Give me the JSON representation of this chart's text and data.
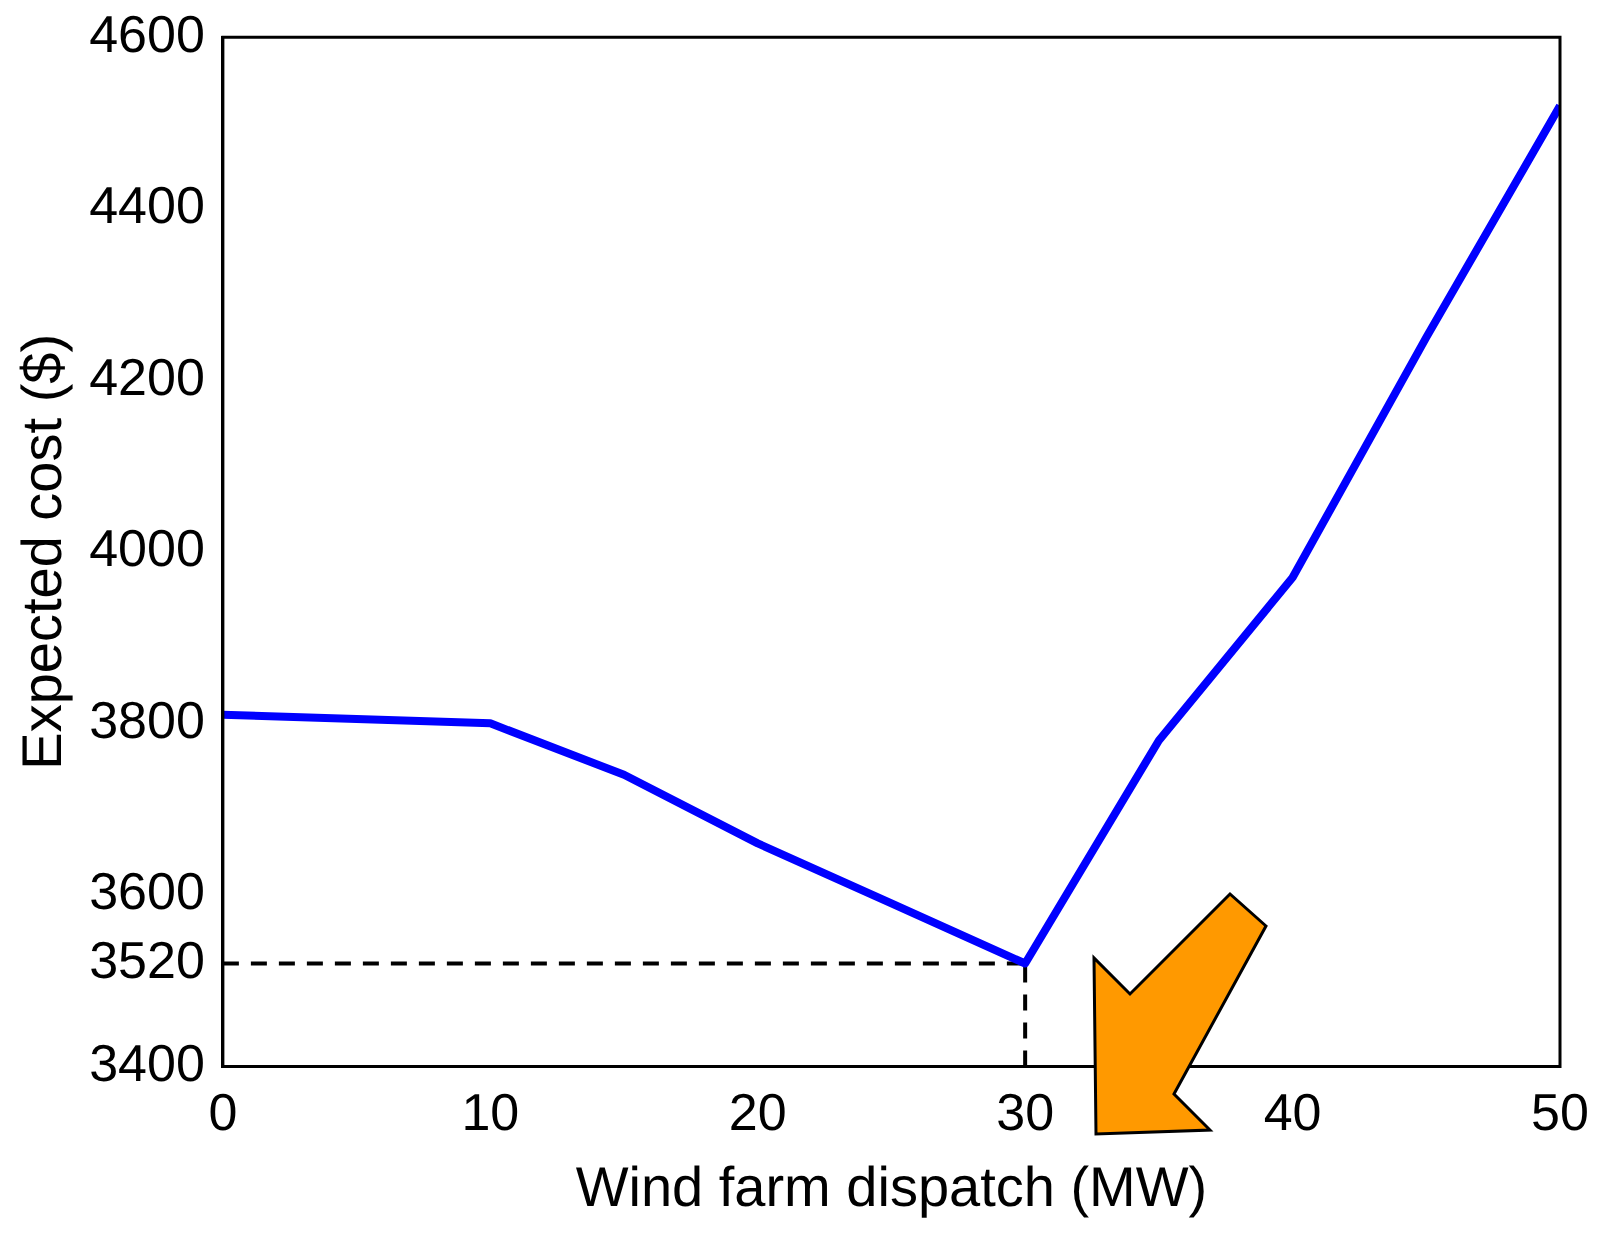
{
  "chart_data": {
    "type": "line",
    "xlabel": "Wind farm dispatch (MW)",
    "ylabel": "Expected cost ($)",
    "xlim": [
      0,
      50
    ],
    "xticks": [
      0,
      10,
      20,
      30,
      40,
      50
    ],
    "ylim": [
      3400,
      4600
    ],
    "yticks": [
      3400,
      3520,
      3600,
      3800,
      4000,
      4200,
      4400,
      4600
    ],
    "grid": false,
    "legend": false,
    "marker": "none",
    "series": [
      {
        "color": "#0000ff",
        "x": [
          0,
          5,
          10,
          15,
          20,
          25,
          30,
          35,
          40,
          45,
          50
        ],
        "values": [
          3810,
          3805,
          3800,
          3740,
          3660,
          3590,
          3520,
          3780,
          3970,
          4250,
          4520
        ]
      },
      {
        "color": "#000000",
        "line_style": "dashed",
        "x": [
          0,
          30
        ],
        "values": [
          3520,
          3520
        ]
      },
      {
        "color": "#000000",
        "line_style": "dashed",
        "x": [
          30,
          30
        ],
        "values": [
          3400,
          3520
        ]
      }
    ]
  }
}
